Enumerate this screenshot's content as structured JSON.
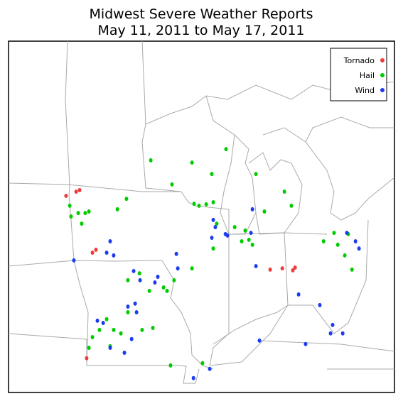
{
  "chart_data": {
    "type": "scatter",
    "title": [
      "Midwest Severe Weather Reports",
      "May 11, 2011 to May 17, 2011"
    ],
    "xlim": [
      -98.19,
      -79.47
    ],
    "ylim": [
      35.41,
      49.56
    ],
    "legend": "upper right",
    "series": [
      {
        "name": "Tornado",
        "color": "#ee3b3b",
        "x": [
          -95.4,
          -94.91,
          -94.74,
          -94.12,
          -93.95,
          -85.5,
          -84.91,
          -84.4,
          -84.29,
          -94.4
        ],
        "y": [
          43.33,
          43.5,
          43.56,
          41.04,
          41.16,
          40.36,
          40.41,
          40.33,
          40.44,
          36.79
        ]
      },
      {
        "name": "Hail",
        "color": "#00cc00",
        "x": [
          -91.29,
          -89.29,
          -90.26,
          -88.33,
          -87.64,
          -89.19,
          -88.95,
          -88.6,
          -88.26,
          -88.09,
          -88.26,
          -89.29,
          -90.67,
          -90.5,
          -90.16,
          -91.84,
          -91.36,
          -92.4,
          -93.43,
          -93.78,
          -93.09,
          -92.74,
          -91.71,
          -91.19,
          -94.29,
          -94.12,
          -93.26,
          -95.16,
          -94.81,
          -94.47,
          -94.29,
          -95.22,
          -94.64,
          -92.91,
          -92.47,
          -90.33,
          -88.78,
          -86.53,
          -86.36,
          -86.88,
          -86.19,
          -85.78,
          -84.47,
          -84.81,
          -82.4,
          -82.22,
          -81.71,
          -81.88,
          -81.53,
          -82.91,
          -92.4,
          -86.71,
          -87.22
        ],
        "y": [
          44.76,
          44.67,
          43.79,
          44.21,
          45.21,
          43.01,
          42.93,
          42.99,
          43.07,
          42.21,
          41.21,
          40.41,
          39.64,
          39.5,
          39.93,
          40.21,
          39.5,
          38.64,
          38.36,
          37.93,
          37.93,
          37.79,
          37.93,
          38.01,
          37.21,
          37.64,
          37.27,
          42.5,
          42.64,
          42.64,
          42.7,
          42.93,
          42.21,
          42.79,
          43.21,
          36.5,
          36.59,
          41.56,
          41.36,
          41.5,
          44.21,
          42.7,
          42.93,
          43.5,
          41.84,
          41.36,
          41.79,
          40.93,
          40.36,
          41.5,
          39.93,
          41.93,
          42.07
        ]
      },
      {
        "name": "Wind",
        "color": "#1c3cf0",
        "x": [
          -93.26,
          -93.43,
          -93.09,
          -95.02,
          -92.12,
          -91.81,
          -91.09,
          -90.95,
          -90.05,
          -89.98,
          -92.4,
          -92.05,
          -91.98,
          -93.88,
          -93.6,
          -93.26,
          -92.57,
          -92.22,
          -88.26,
          -88.16,
          -87.67,
          -87.57,
          -88.33,
          -86.36,
          -86.19,
          -86.43,
          -81.78,
          -81.36,
          -81.19,
          -83.09,
          -82.47,
          -82.57,
          -81.98,
          -86.02,
          -83.78,
          -88.43,
          -89.22,
          -84.12
        ],
        "y": [
          41.5,
          41.04,
          40.93,
          40.73,
          40.3,
          39.93,
          39.84,
          40.07,
          40.99,
          40.41,
          38.87,
          38.99,
          38.64,
          38.3,
          38.21,
          37.21,
          37.01,
          37.56,
          42.36,
          42.07,
          41.79,
          41.73,
          41.64,
          42.79,
          40.5,
          41.84,
          41.84,
          41.5,
          41.21,
          38.93,
          38.13,
          37.79,
          37.79,
          37.5,
          37.36,
          36.36,
          35.99,
          39.36
        ]
      }
    ]
  }
}
